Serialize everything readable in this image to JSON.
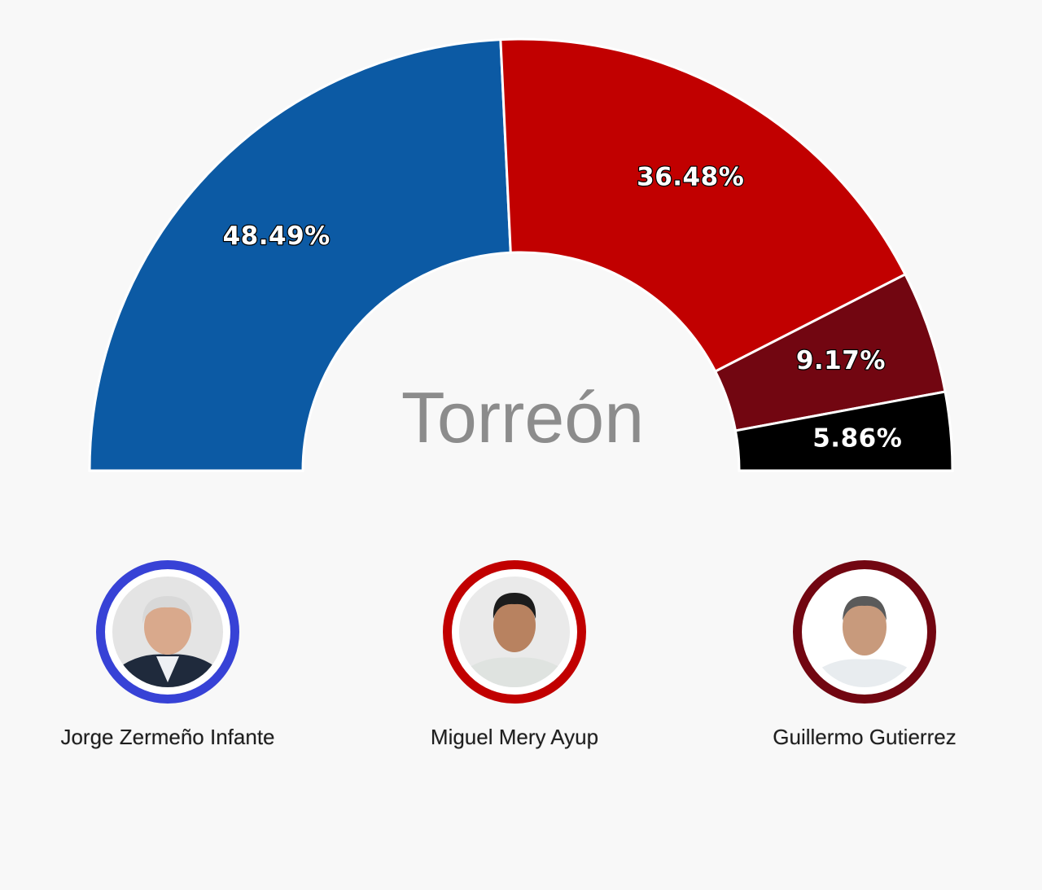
{
  "chart_data": {
    "type": "pie",
    "style": "semi-circle donut",
    "title": "Torreón",
    "slices": [
      {
        "label": "48.49%",
        "value": 48.49,
        "color": "#0c5aa4"
      },
      {
        "label": "36.48%",
        "value": 36.48,
        "color": "#c10000"
      },
      {
        "label": "9.17%",
        "value": 9.17,
        "color": "#720611"
      },
      {
        "label": "5.86%",
        "value": 5.86,
        "color": "#000000"
      }
    ]
  },
  "candidates": [
    {
      "name": "Jorge Zermeño Infante",
      "ring_color": "#3742d6",
      "photo": "candidate-photo"
    },
    {
      "name": "Miguel Mery Ayup",
      "ring_color": "#c10000",
      "photo": "candidate-photo"
    },
    {
      "name": "Guillermo Gutierrez",
      "ring_color": "#720611",
      "photo": "candidate-photo"
    }
  ]
}
